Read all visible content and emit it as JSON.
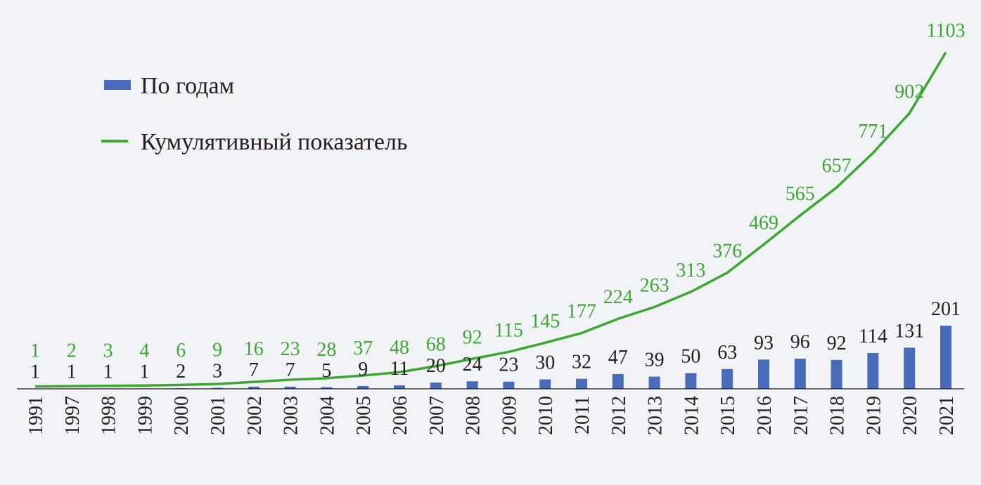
{
  "chart_data": {
    "type": "bar+line",
    "title": "",
    "xlabel": "",
    "ylabel": "",
    "categories": [
      "1991",
      "1997",
      "1998",
      "1999",
      "2000",
      "2001",
      "2002",
      "2003",
      "2004",
      "2005",
      "2006",
      "2007",
      "2008",
      "2009",
      "2010",
      "2011",
      "2012",
      "2013",
      "2014",
      "2015",
      "2016",
      "2017",
      "2018",
      "2019",
      "2020",
      "2021"
    ],
    "series": [
      {
        "name": "По годам",
        "type": "bar",
        "color": "#4a6cb8",
        "values": [
          1,
          1,
          1,
          1,
          2,
          3,
          7,
          7,
          5,
          9,
          11,
          20,
          24,
          23,
          30,
          32,
          47,
          39,
          50,
          63,
          93,
          96,
          92,
          114,
          131,
          201
        ]
      },
      {
        "name": "Кумулятивный показатель",
        "type": "line",
        "color": "#3fa535",
        "values": [
          1,
          2,
          3,
          4,
          6,
          9,
          16,
          23,
          28,
          37,
          48,
          68,
          92,
          115,
          145,
          177,
          224,
          263,
          313,
          376,
          469,
          565,
          657,
          771,
          902,
          1103
        ]
      }
    ],
    "legend_position": "top-left",
    "grid": false,
    "data_labels": true
  }
}
